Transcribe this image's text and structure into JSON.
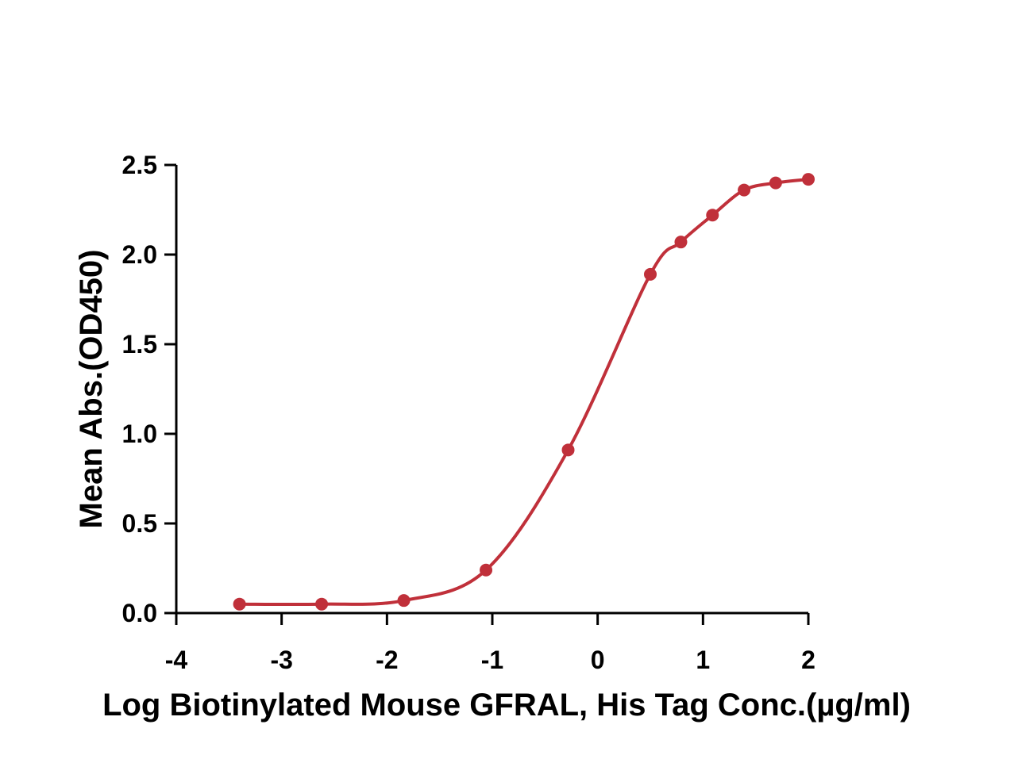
{
  "chart_data": {
    "type": "scatter",
    "title": "",
    "xlabel": "Log Biotinylated Mouse GFRAL, His Tag Conc.(µg/ml)",
    "ylabel": "Mean Abs.(OD450)",
    "xlim": [
      -4,
      2
    ],
    "ylim": [
      0,
      2.5
    ],
    "x_ticks": [
      "-4",
      "-3",
      "-2",
      "-1",
      "0",
      "1",
      "2"
    ],
    "y_ticks": [
      "0.0",
      "0.5",
      "1.0",
      "1.5",
      "2.0",
      "2.5"
    ],
    "grid": false,
    "legend": "none",
    "color": "#c0303a",
    "series": [
      {
        "x": [
          -3.4,
          -2.62,
          -1.84,
          -1.06,
          -0.28,
          0.5,
          0.79,
          1.09,
          1.39,
          1.69,
          2.0
        ],
        "y": [
          0.05,
          0.05,
          0.07,
          0.24,
          0.91,
          1.89,
          2.07,
          2.22,
          2.36,
          2.4,
          2.42
        ],
        "fit": "four-parameter logistic"
      }
    ]
  }
}
